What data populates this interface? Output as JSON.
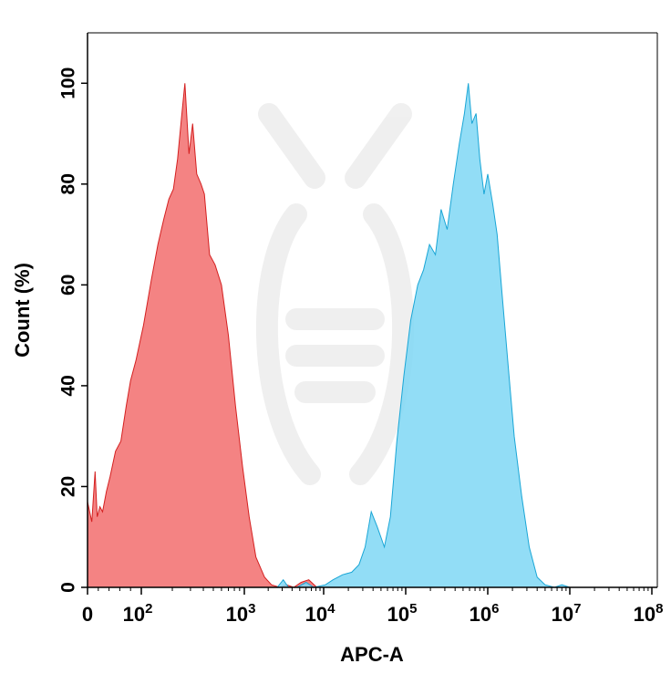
{
  "chart_data": {
    "type": "area",
    "xlabel": "APC-A",
    "ylabel": "Count (%)",
    "x_scale": "biexponential",
    "x_ticks": [
      {
        "value": 0,
        "base": "0",
        "exp": ""
      },
      {
        "value": 100,
        "base": "10",
        "exp": "2"
      },
      {
        "value": 1000,
        "base": "10",
        "exp": "3"
      },
      {
        "value": 10000,
        "base": "10",
        "exp": "4"
      },
      {
        "value": 100000,
        "base": "10",
        "exp": "5"
      },
      {
        "value": 1000000,
        "base": "10",
        "exp": "6"
      },
      {
        "value": 10000000,
        "base": "10",
        "exp": "7"
      },
      {
        "value": 100000000,
        "base": "10",
        "exp": "8"
      }
    ],
    "y_ticks": [
      "0",
      "20",
      "40",
      "60",
      "80",
      "100"
    ],
    "ylim": [
      0,
      110
    ],
    "grid": false,
    "legend": "none",
    "series": [
      {
        "color": "#f26d6d",
        "stroke": "#d42020",
        "points": [
          [
            0,
            17
          ],
          [
            8,
            13
          ],
          [
            14,
            23
          ],
          [
            18,
            14
          ],
          [
            23,
            16
          ],
          [
            28,
            15
          ],
          [
            35,
            19
          ],
          [
            42,
            22
          ],
          [
            52,
            27
          ],
          [
            62,
            29
          ],
          [
            72,
            36
          ],
          [
            80,
            41
          ],
          [
            90,
            45
          ],
          [
            105,
            52
          ],
          [
            125,
            61
          ],
          [
            145,
            68
          ],
          [
            165,
            73
          ],
          [
            185,
            77
          ],
          [
            205,
            79
          ],
          [
            225,
            85
          ],
          [
            245,
            93
          ],
          [
            265,
            100
          ],
          [
            290,
            86
          ],
          [
            315,
            92
          ],
          [
            345,
            82
          ],
          [
            380,
            80
          ],
          [
            410,
            78
          ],
          [
            460,
            66
          ],
          [
            520,
            64
          ],
          [
            600,
            60
          ],
          [
            700,
            50
          ],
          [
            820,
            36
          ],
          [
            960,
            24
          ],
          [
            1150,
            14
          ],
          [
            1400,
            6
          ],
          [
            1800,
            2
          ],
          [
            2200,
            0.5
          ],
          [
            2800,
            0
          ],
          [
            3400,
            0.5
          ],
          [
            4200,
            0
          ],
          [
            5200,
            1
          ],
          [
            6500,
            1.5
          ],
          [
            8200,
            0
          ]
        ]
      },
      {
        "color": "#7fd7f5",
        "stroke": "#1aa6d6",
        "points": [
          [
            2600,
            0
          ],
          [
            3100,
            1.5
          ],
          [
            3600,
            0
          ],
          [
            4600,
            0
          ],
          [
            6000,
            1
          ],
          [
            7500,
            0
          ],
          [
            10500,
            0.5
          ],
          [
            13000,
            1.5
          ],
          [
            17000,
            2.5
          ],
          [
            22000,
            3
          ],
          [
            27000,
            4.5
          ],
          [
            32000,
            8
          ],
          [
            38000,
            15
          ],
          [
            45000,
            12
          ],
          [
            55000,
            8
          ],
          [
            65000,
            14
          ],
          [
            78000,
            29
          ],
          [
            95000,
            42
          ],
          [
            115000,
            53
          ],
          [
            140000,
            60
          ],
          [
            165000,
            63
          ],
          [
            195000,
            68
          ],
          [
            230000,
            66
          ],
          [
            270000,
            75
          ],
          [
            320000,
            71
          ],
          [
            380000,
            80
          ],
          [
            450000,
            88
          ],
          [
            520000,
            94
          ],
          [
            580000,
            100
          ],
          [
            640000,
            92
          ],
          [
            720000,
            94
          ],
          [
            800000,
            85
          ],
          [
            900000,
            78
          ],
          [
            1000000,
            82
          ],
          [
            1150000,
            76
          ],
          [
            1300000,
            70
          ],
          [
            1500000,
            58
          ],
          [
            1750000,
            45
          ],
          [
            2100000,
            30
          ],
          [
            2600000,
            18
          ],
          [
            3200000,
            8
          ],
          [
            4000000,
            2
          ],
          [
            5000000,
            0.5
          ],
          [
            6500000,
            0
          ],
          [
            8000000,
            0.5
          ],
          [
            10000000,
            0
          ]
        ]
      }
    ]
  }
}
